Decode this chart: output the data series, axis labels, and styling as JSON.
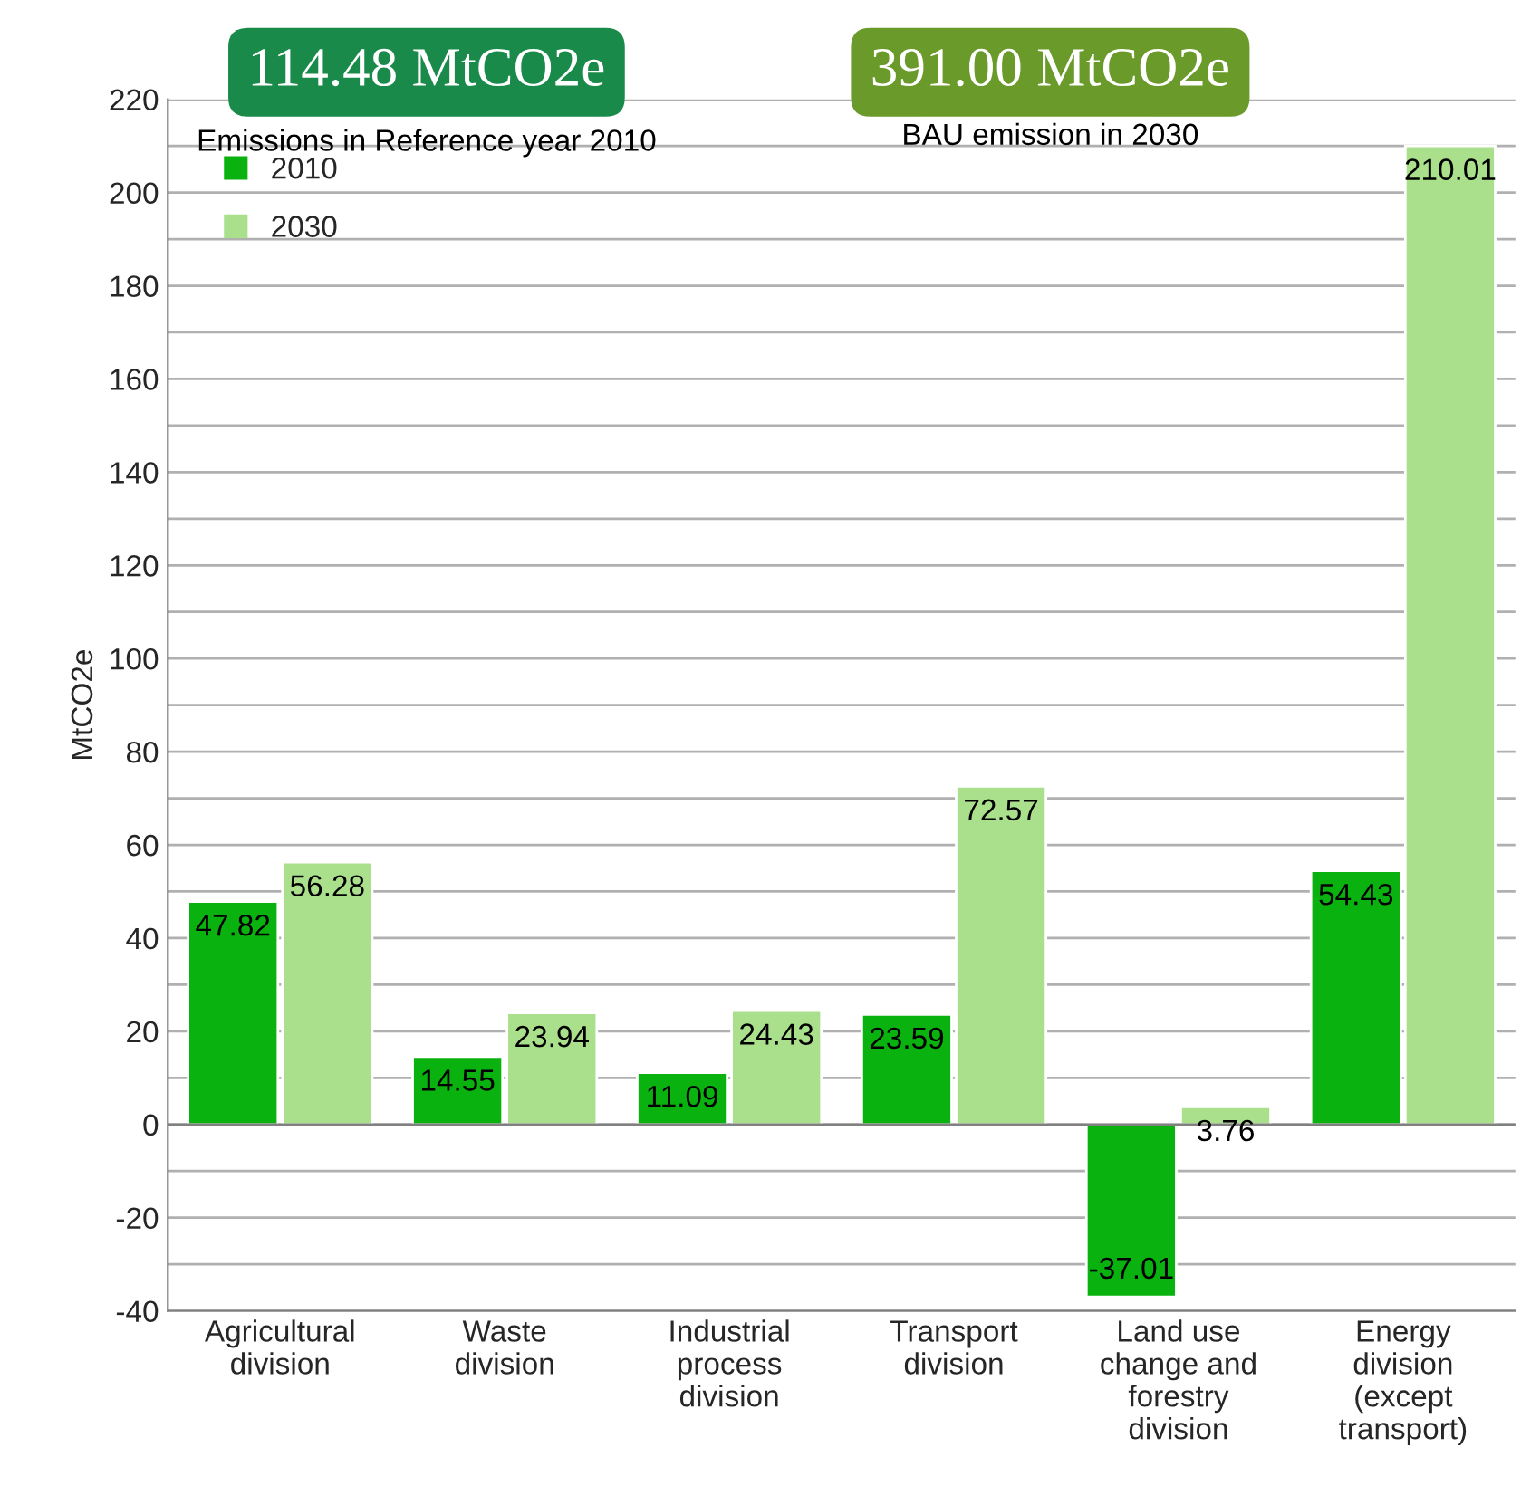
{
  "chart_data": {
    "type": "bar",
    "ylabel": "MtCO2e",
    "categories": [
      "Agricultural\ndivision",
      "Waste\ndivision",
      "Industrial\nprocess\ndivision",
      "Transport\ndivision",
      "Land use\nchange and\nforestry\ndivision",
      "Energy\ndivision\n(except\ntransport)"
    ],
    "series": [
      {
        "name": "2010",
        "color": "#0ab20f",
        "values": [
          47.82,
          14.55,
          11.09,
          23.59,
          -37.01,
          54.43
        ]
      },
      {
        "name": "2030",
        "color": "#aae08c",
        "values": [
          56.28,
          23.94,
          24.43,
          72.57,
          3.76,
          210.01
        ]
      }
    ],
    "ylim": [
      -40,
      220
    ],
    "yticks": [
      -40,
      {
        "value": -30,
        "label": null
      },
      -20,
      {
        "value": -10,
        "label": null
      },
      0,
      {
        "value": 10,
        "label": null
      },
      20,
      {
        "value": 30,
        "label": null
      },
      40,
      {
        "value": 50,
        "label": null
      },
      60,
      {
        "value": 70,
        "label": null
      },
      80,
      {
        "value": 90,
        "label": null
      },
      100,
      {
        "value": 110,
        "label": null
      },
      120,
      {
        "value": 130,
        "label": null
      },
      140,
      {
        "value": 150,
        "label": null
      },
      160,
      {
        "value": 170,
        "label": null
      },
      180,
      {
        "value": 190,
        "label": null
      },
      200,
      {
        "value": 210,
        "label": null
      },
      220
    ],
    "grid": "y",
    "legend": "top left",
    "data_labels": true,
    "annotations": [
      "114.48 MtCO2e",
      "Emissions in Reference year 2010",
      "391.00 MtCO2e",
      "BAU emission in 2030"
    ]
  }
}
